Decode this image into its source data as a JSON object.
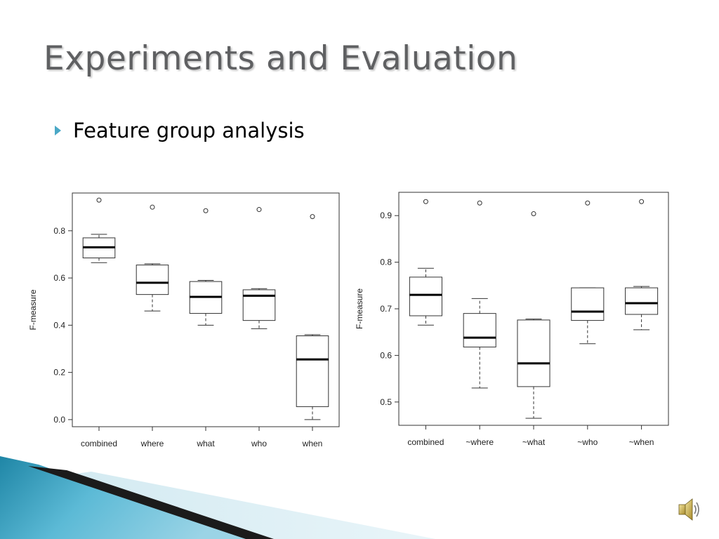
{
  "slide": {
    "title": "Experiments and Evaluation",
    "bullet": "Feature group analysis",
    "bullet_icon": "triangle-bullet-icon",
    "accent_color": "#4aa8c6",
    "speaker_icon": "speaker-icon"
  },
  "chart_data": [
    {
      "type": "boxplot",
      "title": "",
      "xlabel": "",
      "ylabel": "F-measure",
      "ylim": [
        -0.03,
        0.96
      ],
      "yticks": [
        0.0,
        0.2,
        0.4,
        0.6,
        0.8
      ],
      "ytick_labels": [
        "0.0",
        "0.2",
        "0.4",
        "0.6",
        "0.8"
      ],
      "categories": [
        "combined",
        "where",
        "what",
        "who",
        "when"
      ],
      "boxes": [
        {
          "whisker_low": 0.665,
          "q1": 0.685,
          "median": 0.73,
          "q3": 0.77,
          "whisker_high": 0.785,
          "outliers": [
            0.93
          ]
        },
        {
          "whisker_low": 0.46,
          "q1": 0.53,
          "median": 0.58,
          "q3": 0.655,
          "whisker_high": 0.66,
          "outliers": [
            0.9
          ]
        },
        {
          "whisker_low": 0.4,
          "q1": 0.45,
          "median": 0.52,
          "q3": 0.585,
          "whisker_high": 0.59,
          "outliers": [
            0.885
          ]
        },
        {
          "whisker_low": 0.385,
          "q1": 0.42,
          "median": 0.525,
          "q3": 0.55,
          "whisker_high": 0.555,
          "outliers": [
            0.89
          ]
        },
        {
          "whisker_low": 0.0,
          "q1": 0.055,
          "median": 0.255,
          "q3": 0.355,
          "whisker_high": 0.36,
          "outliers": [
            0.86
          ]
        }
      ]
    },
    {
      "type": "boxplot",
      "title": "",
      "xlabel": "",
      "ylabel": "F-measure",
      "ylim": [
        0.45,
        0.95
      ],
      "yticks": [
        0.5,
        0.6,
        0.7,
        0.8,
        0.9
      ],
      "ytick_labels": [
        "0.5",
        "0.6",
        "0.7",
        "0.8",
        "0.9"
      ],
      "categories": [
        "combined",
        "~where",
        "~what",
        "~who",
        "~when"
      ],
      "boxes": [
        {
          "whisker_low": 0.665,
          "q1": 0.685,
          "median": 0.73,
          "q3": 0.768,
          "whisker_high": 0.787,
          "outliers": [
            0.93
          ]
        },
        {
          "whisker_low": 0.53,
          "q1": 0.618,
          "median": 0.638,
          "q3": 0.69,
          "whisker_high": 0.722,
          "outliers": [
            0.927
          ]
        },
        {
          "whisker_low": 0.465,
          "q1": 0.533,
          "median": 0.583,
          "q3": 0.676,
          "whisker_high": 0.678,
          "outliers": [
            0.904
          ]
        },
        {
          "whisker_low": 0.625,
          "q1": 0.675,
          "median": 0.694,
          "q3": 0.745,
          "whisker_high": 0.745,
          "outliers": [
            0.927
          ]
        },
        {
          "whisker_low": 0.655,
          "q1": 0.688,
          "median": 0.712,
          "q3": 0.745,
          "whisker_high": 0.748,
          "outliers": [
            0.93
          ]
        }
      ]
    }
  ]
}
